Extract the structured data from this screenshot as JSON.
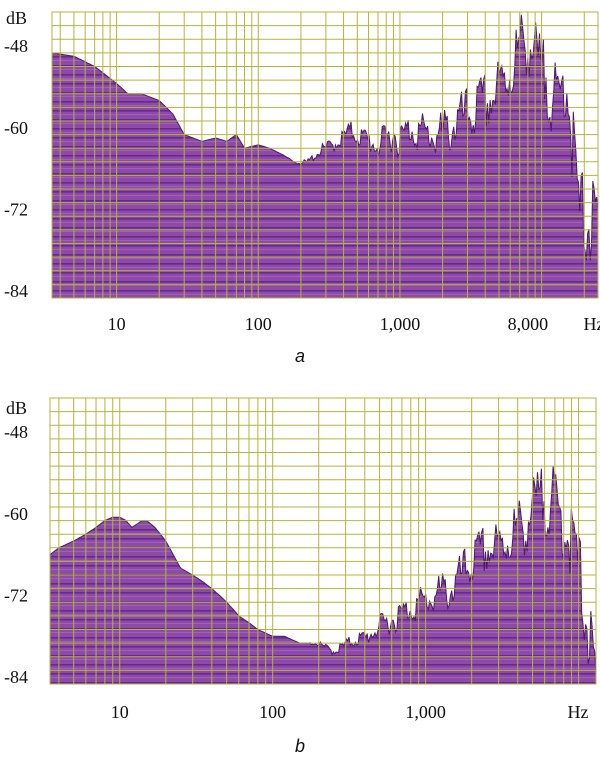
{
  "colors": {
    "grid": "#b5b43a",
    "fill": "#8e4aa8",
    "fill_dark": "#5b2285",
    "edge": "#4b1a6b",
    "band_light": "#a56ac0"
  },
  "chart_data": [
    {
      "type": "area",
      "panel_label": "a",
      "ylabel": "dB",
      "xlabel": "Hz",
      "y_scale": "linear",
      "x_scale": "log",
      "ylim": [
        -85,
        -43
      ],
      "xlim": [
        3.5,
        25000
      ],
      "y_ticks": [
        -48,
        -60,
        -72,
        -84
      ],
      "y_tick_labels": [
        "-48",
        "-60",
        "-72",
        "-84"
      ],
      "x_ticks": [
        10,
        100,
        1000,
        8000
      ],
      "x_tick_labels": [
        "10",
        "100",
        "1,000",
        "8,000"
      ],
      "grid": true,
      "series": [
        {
          "x": [
            3.5,
            5,
            7,
            10,
            12,
            15,
            20,
            25,
            30,
            40,
            50,
            60,
            70,
            80,
            100,
            120,
            150,
            180,
            220,
            280,
            350,
            450,
            550,
            700,
            900,
            1000,
            1200,
            1500,
            2000,
            2500,
            3000,
            4000,
            5000,
            6000,
            7000,
            8000,
            9000,
            10000,
            11000,
            12000,
            13000,
            14000,
            15000,
            16000,
            17000,
            18000,
            20000,
            25000
          ],
          "y": [
            -49,
            -49.5,
            -51,
            -53.5,
            -55,
            -55,
            -56,
            -58,
            -61,
            -62,
            -61.5,
            -62,
            -61,
            -63,
            -62.5,
            -63,
            -64,
            -65,
            -65,
            -63,
            -62,
            -60,
            -61,
            -62,
            -60,
            -61,
            -59,
            -60,
            -60,
            -58,
            -57,
            -55,
            -53,
            -50,
            -47,
            -45,
            -48,
            -51,
            -50,
            -54,
            -56,
            -52,
            -50,
            -57,
            -62,
            -70,
            -71,
            -73
          ]
        }
      ]
    },
    {
      "type": "area",
      "panel_label": "b",
      "ylabel": "dB",
      "xlabel": "Hz",
      "y_scale": "linear",
      "x_scale": "log",
      "ylim": [
        -85,
        -43
      ],
      "xlim": [
        3.5,
        13000
      ],
      "y_ticks": [
        -48,
        -60,
        -72,
        -84
      ],
      "y_tick_labels": [
        "-48",
        "-60",
        "-72",
        "-84"
      ],
      "x_ticks": [
        10,
        100,
        1000
      ],
      "x_tick_labels": [
        "10",
        "100",
        "1,000"
      ],
      "grid": true,
      "series": [
        {
          "x": [
            3.5,
            4,
            5,
            6,
            7,
            8,
            9,
            10,
            11,
            12,
            13,
            14,
            15,
            17,
            20,
            25,
            30,
            35,
            40,
            45,
            50,
            55,
            60,
            70,
            80,
            100,
            120,
            150,
            200,
            250,
            300,
            350,
            400,
            500,
            600,
            700,
            800,
            1000,
            1200,
            1500,
            2000,
            2500,
            3000,
            3500,
            4000,
            4500,
            5000,
            5500,
            6000,
            7000,
            8000,
            9000,
            10000,
            11000,
            12000,
            13000
          ],
          "y": [
            -66,
            -65,
            -64,
            -63,
            -62,
            -61,
            -60.5,
            -60.5,
            -61,
            -62,
            -61.5,
            -61,
            -61,
            -62,
            -64,
            -68,
            -69,
            -70,
            -71,
            -72,
            -73,
            -74,
            -75,
            -76,
            -77,
            -78,
            -78,
            -79,
            -79,
            -80,
            -79,
            -78,
            -78,
            -76,
            -75,
            -74,
            -73,
            -72,
            -71,
            -70,
            -66,
            -64,
            -64,
            -62,
            -61,
            -60,
            -58,
            -57,
            -56,
            -57,
            -60,
            -62,
            -66,
            -72,
            -78,
            -84
          ]
        }
      ]
    }
  ]
}
